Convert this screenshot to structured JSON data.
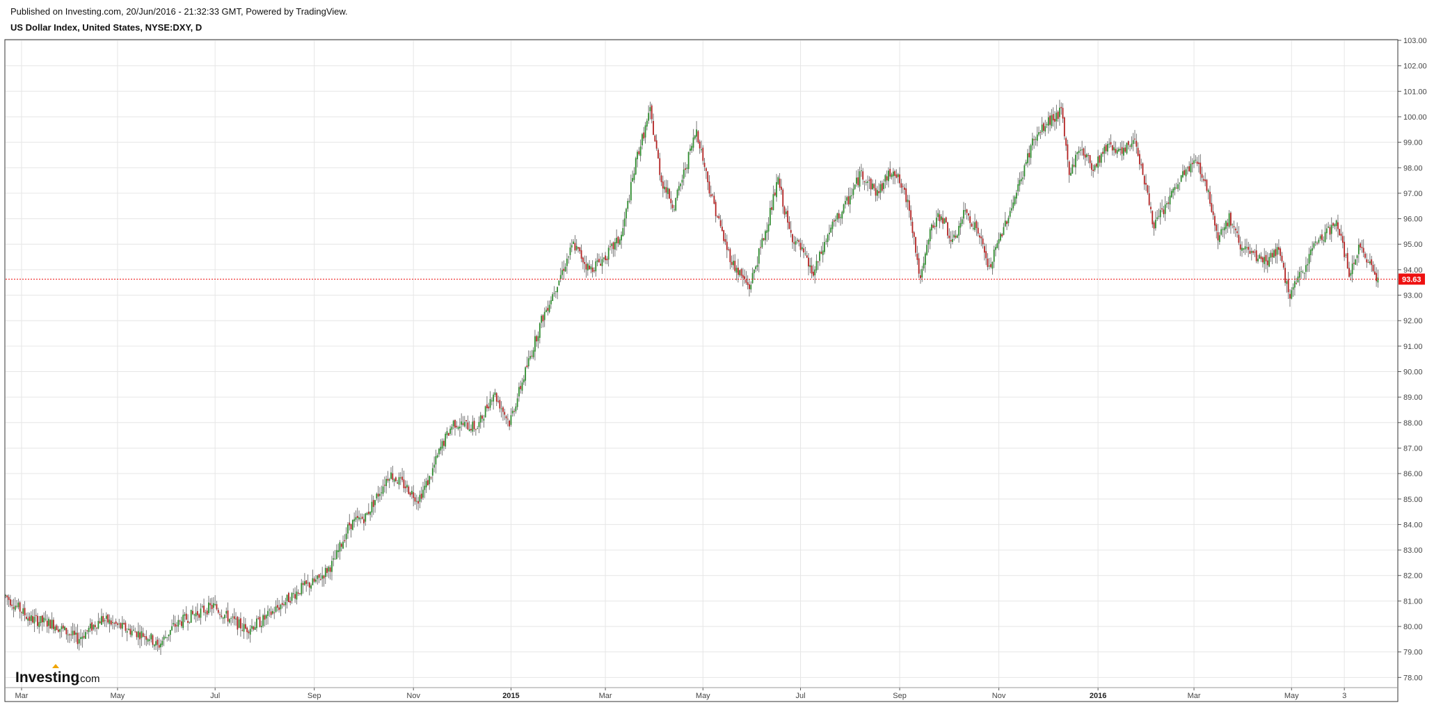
{
  "header": {
    "published": "Published on Investing.com, 20/Jun/2016 - 21:32:33 GMT, Powered by TradingView.",
    "symbol": "US Dollar Index, United States, NYSE:DXY, D"
  },
  "logo": {
    "brand": "Investing",
    "suffix": ".com"
  },
  "colors": {
    "up": "#2e8b2e",
    "down": "#b22222",
    "grid": "#e6e6e6",
    "current": "#ee1111"
  },
  "chart_data": {
    "type": "candlestick",
    "title": "US Dollar Index, United States, NYSE:DXY, D",
    "ylim": [
      77.6,
      103.0
    ],
    "y_ticks": [
      "78.00",
      "79.00",
      "80.00",
      "81.00",
      "82.00",
      "83.00",
      "84.00",
      "85.00",
      "86.00",
      "87.00",
      "88.00",
      "89.00",
      "90.00",
      "91.00",
      "92.00",
      "93.00",
      "94.00",
      "95.00",
      "96.00",
      "97.00",
      "98.00",
      "99.00",
      "100.00",
      "101.00",
      "102.00",
      "103.00"
    ],
    "x_tick_labels": [
      {
        "label": "Mar",
        "bold": false
      },
      {
        "label": "May",
        "bold": false
      },
      {
        "label": "Jul",
        "bold": false
      },
      {
        "label": "Sep",
        "bold": false
      },
      {
        "label": "Nov",
        "bold": false
      },
      {
        "label": "2015",
        "bold": true
      },
      {
        "label": "Mar",
        "bold": false
      },
      {
        "label": "May",
        "bold": false
      },
      {
        "label": "Jul",
        "bold": false
      },
      {
        "label": "Sep",
        "bold": false
      },
      {
        "label": "Nov",
        "bold": false
      },
      {
        "label": "2016",
        "bold": true
      },
      {
        "label": "Mar",
        "bold": false
      },
      {
        "label": "May",
        "bold": false
      },
      {
        "label": "3",
        "bold": false
      }
    ],
    "x_tick_days": [
      10,
      70,
      131,
      193,
      255,
      316,
      375,
      436,
      497,
      559,
      621,
      683,
      743,
      804,
      837
    ],
    "total_days": 870,
    "last_price": "93.63",
    "last_value": 93.63,
    "series": [
      {
        "day": 0,
        "close": 81.2
      },
      {
        "day": 15,
        "close": 80.3
      },
      {
        "day": 30,
        "close": 80.1
      },
      {
        "day": 45,
        "close": 79.5
      },
      {
        "day": 60,
        "close": 80.3
      },
      {
        "day": 75,
        "close": 79.9
      },
      {
        "day": 90,
        "close": 79.6
      },
      {
        "day": 95,
        "close": 79.2
      },
      {
        "day": 105,
        "close": 80.0
      },
      {
        "day": 115,
        "close": 80.4
      },
      {
        "day": 130,
        "close": 80.8
      },
      {
        "day": 140,
        "close": 80.3
      },
      {
        "day": 150,
        "close": 79.9
      },
      {
        "day": 160,
        "close": 80.2
      },
      {
        "day": 175,
        "close": 81.0
      },
      {
        "day": 185,
        "close": 81.5
      },
      {
        "day": 195,
        "close": 81.8
      },
      {
        "day": 205,
        "close": 82.5
      },
      {
        "day": 215,
        "close": 84.0
      },
      {
        "day": 225,
        "close": 84.3
      },
      {
        "day": 240,
        "close": 86.0
      },
      {
        "day": 250,
        "close": 85.5
      },
      {
        "day": 258,
        "close": 85.0
      },
      {
        "day": 265,
        "close": 85.8
      },
      {
        "day": 272,
        "close": 87.0
      },
      {
        "day": 280,
        "close": 88.0
      },
      {
        "day": 295,
        "close": 87.8
      },
      {
        "day": 305,
        "close": 89.2
      },
      {
        "day": 315,
        "close": 88.0
      },
      {
        "day": 325,
        "close": 90.0
      },
      {
        "day": 335,
        "close": 92.0
      },
      {
        "day": 345,
        "close": 93.5
      },
      {
        "day": 355,
        "close": 95.0
      },
      {
        "day": 365,
        "close": 94.0
      },
      {
        "day": 375,
        "close": 94.5
      },
      {
        "day": 385,
        "close": 95.3
      },
      {
        "day": 395,
        "close": 98.5
      },
      {
        "day": 403,
        "close": 100.2
      },
      {
        "day": 410,
        "close": 97.5
      },
      {
        "day": 418,
        "close": 96.5
      },
      {
        "day": 425,
        "close": 98.0
      },
      {
        "day": 432,
        "close": 99.5
      },
      {
        "day": 440,
        "close": 97.2
      },
      {
        "day": 450,
        "close": 95.0
      },
      {
        "day": 455,
        "close": 94.2
      },
      {
        "day": 465,
        "close": 93.3
      },
      {
        "day": 475,
        "close": 95.5
      },
      {
        "day": 483,
        "close": 97.5
      },
      {
        "day": 490,
        "close": 95.5
      },
      {
        "day": 497,
        "close": 94.8
      },
      {
        "day": 505,
        "close": 93.8
      },
      {
        "day": 515,
        "close": 95.5
      },
      {
        "day": 525,
        "close": 96.5
      },
      {
        "day": 535,
        "close": 97.8
      },
      {
        "day": 545,
        "close": 97.0
      },
      {
        "day": 555,
        "close": 98.0
      },
      {
        "day": 565,
        "close": 96.5
      },
      {
        "day": 572,
        "close": 93.5
      },
      {
        "day": 578,
        "close": 95.5
      },
      {
        "day": 585,
        "close": 96.2
      },
      {
        "day": 592,
        "close": 95.0
      },
      {
        "day": 600,
        "close": 96.3
      },
      {
        "day": 608,
        "close": 95.5
      },
      {
        "day": 615,
        "close": 94.0
      },
      {
        "day": 623,
        "close": 95.5
      },
      {
        "day": 632,
        "close": 97.0
      },
      {
        "day": 642,
        "close": 99.0
      },
      {
        "day": 652,
        "close": 99.8
      },
      {
        "day": 660,
        "close": 100.2
      },
      {
        "day": 665,
        "close": 97.8
      },
      {
        "day": 672,
        "close": 98.8
      },
      {
        "day": 680,
        "close": 98.0
      },
      {
        "day": 690,
        "close": 99.0
      },
      {
        "day": 698,
        "close": 98.5
      },
      {
        "day": 706,
        "close": 99.2
      },
      {
        "day": 712,
        "close": 97.5
      },
      {
        "day": 718,
        "close": 95.7
      },
      {
        "day": 728,
        "close": 96.8
      },
      {
        "day": 737,
        "close": 97.8
      },
      {
        "day": 745,
        "close": 98.3
      },
      {
        "day": 752,
        "close": 97.0
      },
      {
        "day": 758,
        "close": 95.3
      },
      {
        "day": 765,
        "close": 96.0
      },
      {
        "day": 772,
        "close": 95.0
      },
      {
        "day": 780,
        "close": 94.5
      },
      {
        "day": 788,
        "close": 94.3
      },
      {
        "day": 795,
        "close": 94.8
      },
      {
        "day": 803,
        "close": 93.0
      },
      {
        "day": 810,
        "close": 93.8
      },
      {
        "day": 818,
        "close": 95.0
      },
      {
        "day": 826,
        "close": 95.5
      },
      {
        "day": 833,
        "close": 95.8
      },
      {
        "day": 840,
        "close": 93.8
      },
      {
        "day": 846,
        "close": 94.8
      },
      {
        "day": 852,
        "close": 94.4
      },
      {
        "day": 858,
        "close": 93.63
      }
    ]
  }
}
